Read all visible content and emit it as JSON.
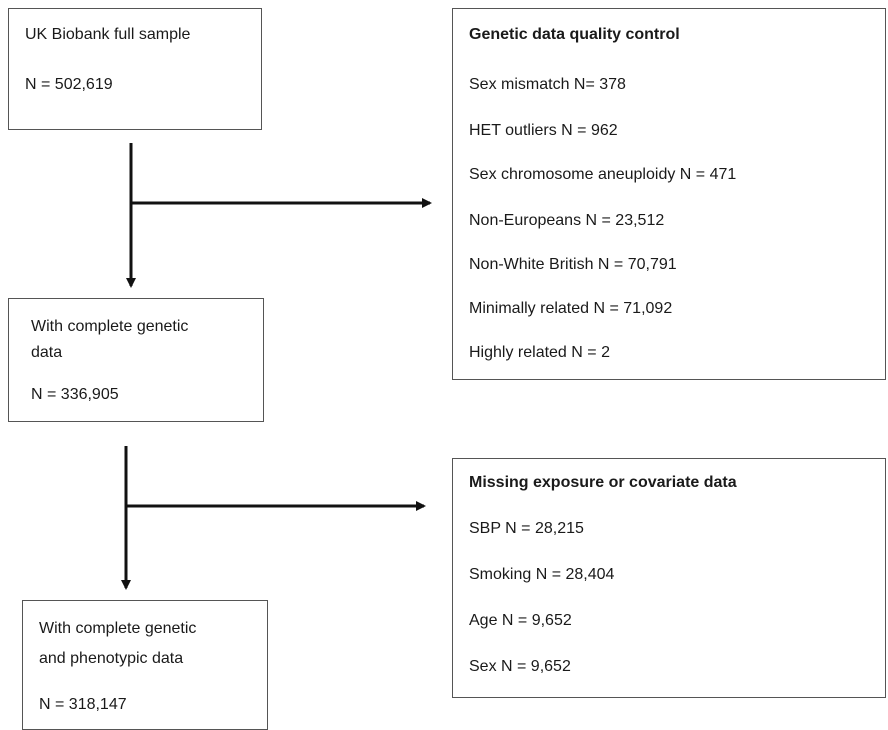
{
  "boxes": {
    "full_sample": {
      "title": "UK Biobank full sample",
      "count": "N = 502,619"
    },
    "qc": {
      "title": "Genetic data quality control",
      "items": [
        "Sex mismatch N= 378",
        "HET outliers N = 962",
        "Sex chromosome aneuploidy N = 471",
        "Non-Europeans N = 23,512",
        "Non-White British N = 70,791",
        "Minimally related N = 71,092",
        "Highly related N = 2"
      ]
    },
    "genetic": {
      "line1": "With complete genetic",
      "line2": "data",
      "count": "N = 336,905"
    },
    "missing": {
      "title": "Missing exposure or covariate data",
      "items": [
        "SBP N = 28,215",
        "Smoking N = 28,404",
        "Age N = 9,652",
        "Sex N = 9,652"
      ]
    },
    "final": {
      "line1": "With complete genetic",
      "line2": "and phenotypic data",
      "count": "N = 318,147"
    }
  },
  "colors": {
    "line": "#111111",
    "border": "#555555"
  }
}
